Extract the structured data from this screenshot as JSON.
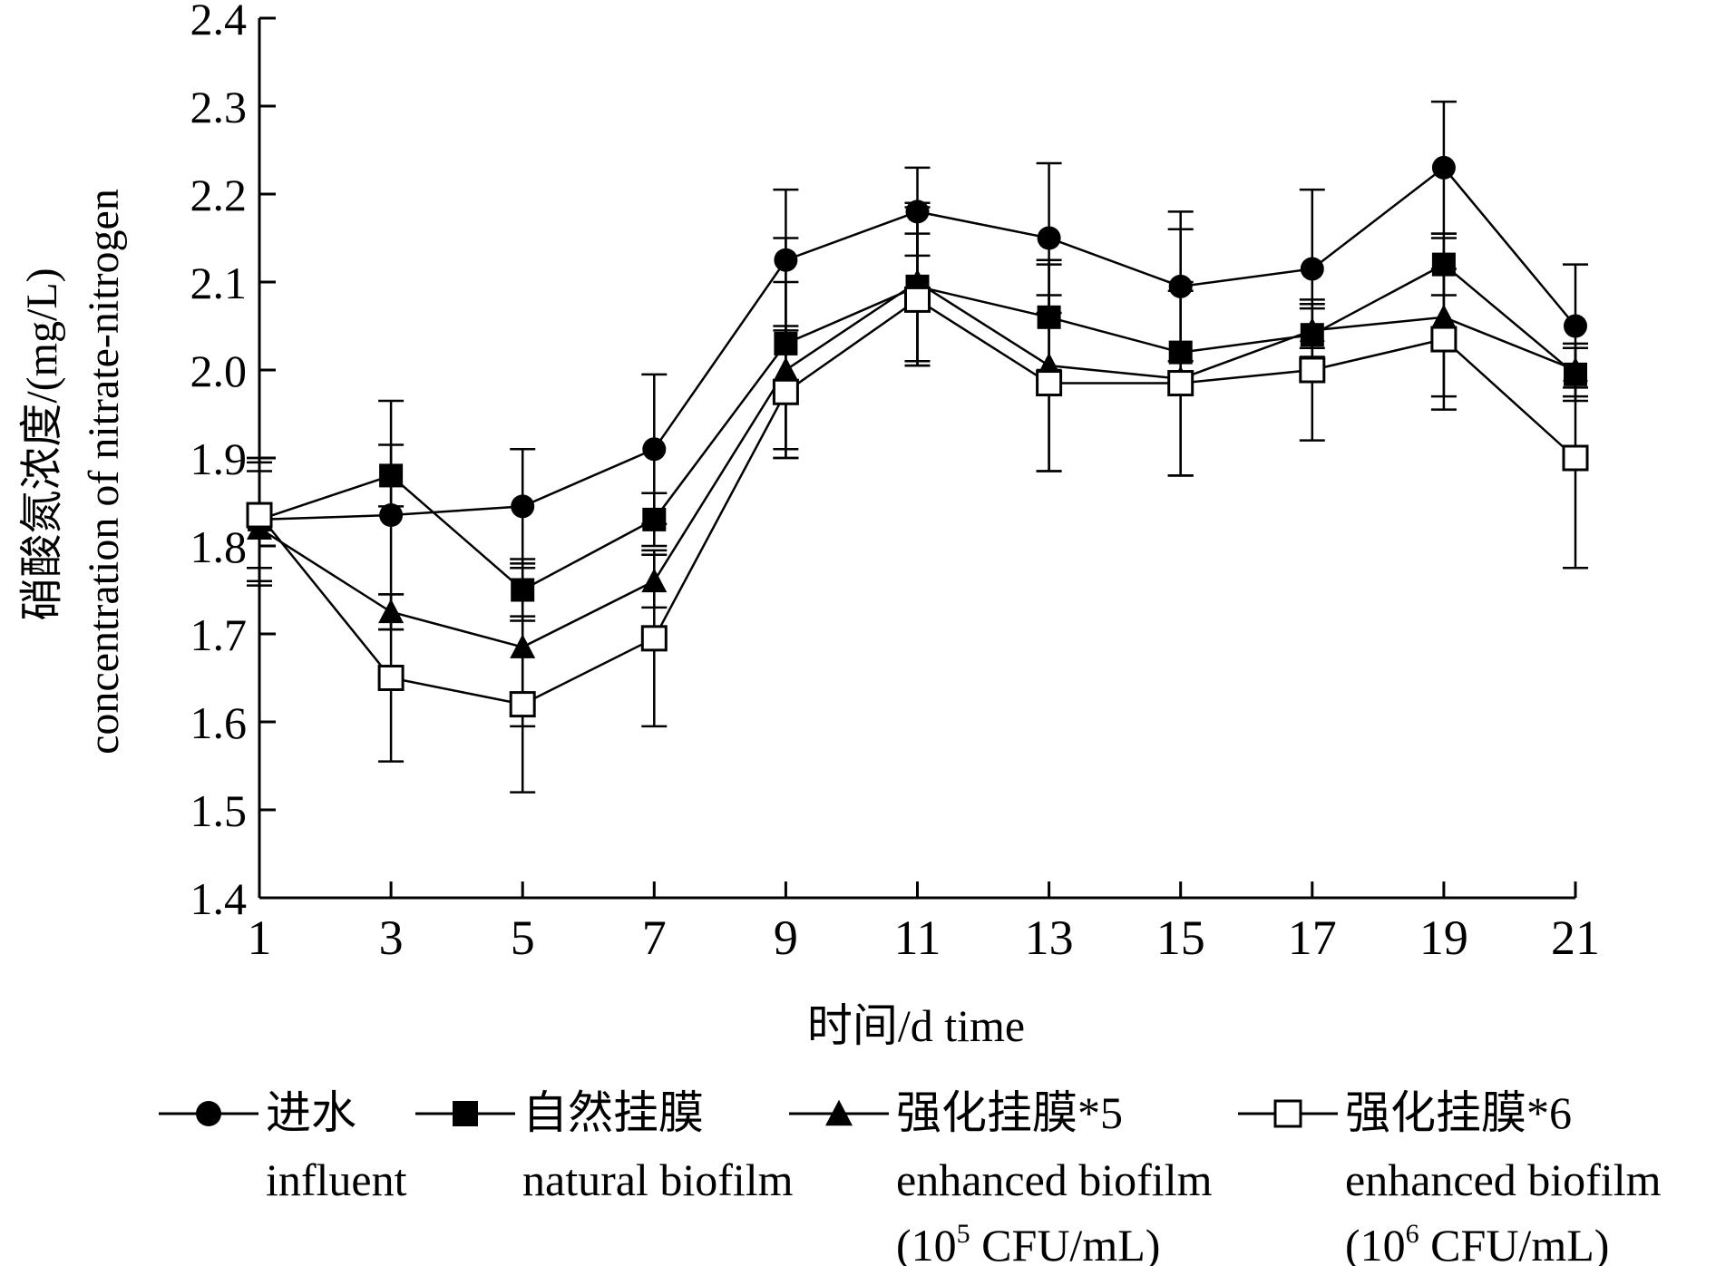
{
  "chart_data": {
    "type": "line",
    "title": "",
    "xlabel": "时间/d time",
    "ylabel_line1": "硝酸氮浓度/(mg/L)",
    "ylabel_line2": "concentration of nitrate-nitrogen",
    "x": [
      1,
      3,
      5,
      7,
      9,
      11,
      13,
      15,
      17,
      19,
      21
    ],
    "xticks": [
      "1",
      "3",
      "5",
      "7",
      "9",
      "11",
      "13",
      "15",
      "17",
      "19",
      "21"
    ],
    "yticks": [
      "1.4",
      "1.5",
      "1.6",
      "1.7",
      "1.8",
      "1.9",
      "2.0",
      "2.1",
      "2.2",
      "2.3",
      "2.4"
    ],
    "xlim": [
      1,
      21
    ],
    "ylim": [
      1.4,
      2.4
    ],
    "grid": false,
    "legend_position": "bottom",
    "series": [
      {
        "key": "influent",
        "marker": "circle-filled",
        "legend_cn": "进水",
        "legend_en": "influent",
        "legend_note": "",
        "legend_note_exp": "",
        "legend_note_tail": "",
        "values": [
          1.83,
          1.835,
          1.845,
          1.91,
          2.125,
          2.18,
          2.15,
          2.095,
          2.115,
          2.23,
          2.05
        ],
        "errors": [
          0.07,
          0.13,
          0.065,
          0.085,
          0.08,
          0.05,
          0.085,
          0.085,
          0.09,
          0.075,
          0.07
        ]
      },
      {
        "key": "natural-biofilm",
        "marker": "square-filled",
        "legend_cn": "自然挂膜",
        "legend_en": "natural biofilm",
        "legend_note": "",
        "legend_note_exp": "",
        "legend_note_tail": "",
        "values": [
          1.83,
          1.88,
          1.75,
          1.83,
          2.03,
          2.095,
          2.06,
          2.02,
          2.04,
          2.12,
          1.995
        ],
        "errors": [
          0.07,
          0.035,
          0.035,
          0.03,
          0.12,
          0.09,
          0.06,
          0.14,
          0.03,
          0.035,
          0.03
        ]
      },
      {
        "key": "enhanced-biofilm-1e5",
        "marker": "triangle-filled",
        "legend_cn": "强化挂膜*5",
        "legend_en": "enhanced biofilm",
        "legend_note": "(10",
        "legend_note_exp": "5",
        "legend_note_tail": " CFU/mL)",
        "values": [
          1.82,
          1.725,
          1.685,
          1.76,
          2.0,
          2.1,
          2.005,
          1.99,
          2.045,
          2.06,
          2.0
        ],
        "errors": [
          0.065,
          0.02,
          0.09,
          0.03,
          0.1,
          0.09,
          0.12,
          0.11,
          0.03,
          0.09,
          0.03
        ]
      },
      {
        "key": "enhanced-biofilm-1e6",
        "marker": "square-open",
        "legend_cn": "强化挂膜*6",
        "legend_en": "enhanced biofilm",
        "legend_note": "(10",
        "legend_note_exp": "6",
        "legend_note_tail": " CFU/mL)",
        "values": [
          1.835,
          1.65,
          1.62,
          1.695,
          1.975,
          2.08,
          1.985,
          1.985,
          2.0,
          2.035,
          1.9
        ],
        "errors": [
          0.06,
          0.095,
          0.1,
          0.1,
          0.075,
          0.075,
          0.1,
          0.105,
          0.08,
          0.08,
          0.125
        ]
      }
    ]
  }
}
